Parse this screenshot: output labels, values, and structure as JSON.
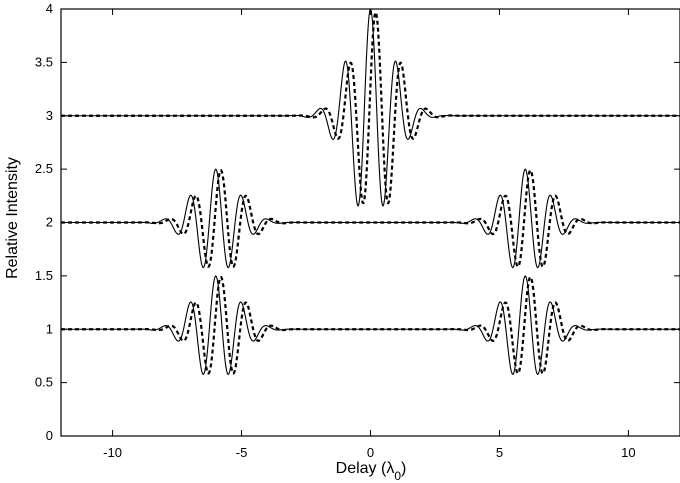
{
  "chart_data": {
    "type": "line",
    "title": "",
    "xlabel": "Delay (λ0)",
    "ylabel": "Relative Intensity",
    "xlim": [
      -12,
      12
    ],
    "ylim": [
      0,
      4
    ],
    "x_ticks": [
      -10,
      -5,
      0,
      5,
      10
    ],
    "x_tick_labels": [
      "-10",
      "-5",
      "0",
      "5",
      "10"
    ],
    "y_ticks": [
      0,
      0.5,
      1,
      1.5,
      2,
      2.5,
      3,
      3.5,
      4
    ],
    "y_tick_labels": [
      "0",
      "0.5",
      "1",
      "1.5",
      "2",
      "2.5",
      "3",
      "3.5",
      "4"
    ],
    "grid": false,
    "legend": "none",
    "series": [
      {
        "style": "solid",
        "traces": [
          {
            "baseline": 3,
            "packets": [
              {
                "center": 0,
                "amplitude": 1.0,
                "sigma": 0.85,
                "period": 1.0,
                "phase": 0
              }
            ],
            "x": [
              -3.0,
              -2.5,
              -2.0,
              -1.5,
              -1.0,
              -0.5,
              0.0,
              0.5,
              1.0,
              1.5,
              2.0,
              2.5,
              3.0
            ],
            "y": [
              3.06,
              2.93,
              3.08,
              2.72,
              3.61,
              2.08,
              3.96,
              2.03,
              3.63,
              2.69,
              3.12,
              2.92,
              3.03
            ]
          },
          {
            "baseline": 2,
            "packets": [
              {
                "center": -6,
                "amplitude": 0.5,
                "sigma": 0.85,
                "period": 1.0,
                "phase": 0
              },
              {
                "center": 6,
                "amplitude": 0.5,
                "sigma": 0.85,
                "period": 1.0,
                "phase": 0
              }
            ],
            "x": [
              -8.0,
              -7.5,
              -7.0,
              -6.5,
              -6.0,
              -5.5,
              -5.0,
              -4.5,
              -4.0
            ],
            "y": [
              2.05,
              1.88,
              2.28,
              1.56,
              2.48,
              1.54,
              2.35,
              1.86,
              2.06
            ]
          },
          {
            "baseline": 1,
            "packets": [
              {
                "center": -6,
                "amplitude": 0.5,
                "sigma": 0.85,
                "period": 1.0,
                "phase": 0
              },
              {
                "center": 6,
                "amplitude": 0.5,
                "sigma": 0.85,
                "period": 1.0,
                "phase": 0
              }
            ],
            "x": [
              -8.0,
              -7.5,
              -7.0,
              -6.5,
              -6.0,
              -5.5,
              -5.0,
              -4.5,
              -4.0
            ],
            "y": [
              1.05,
              0.88,
              1.28,
              0.56,
              1.48,
              0.54,
              1.35,
              0.86,
              1.06
            ]
          }
        ]
      },
      {
        "style": "dashed",
        "traces": [
          {
            "baseline": 3,
            "packets": [
              {
                "center": 0.2,
                "amplitude": 0.97,
                "sigma": 0.85,
                "period": 1.0,
                "phase": 0
              }
            ],
            "x": [
              -2.8,
              -2.3,
              -1.8,
              -1.3,
              -0.8,
              -0.3,
              0.2,
              0.7,
              1.2,
              1.7,
              2.2,
              2.7,
              3.2
            ],
            "y": [
              3.06,
              2.93,
              3.08,
              2.72,
              3.6,
              2.1,
              3.95,
              2.05,
              3.61,
              2.71,
              3.12,
              2.93,
              3.03
            ]
          },
          {
            "baseline": 2,
            "packets": [
              {
                "center": -5.8,
                "amplitude": 0.49,
                "sigma": 0.85,
                "period": 1.0,
                "phase": 0
              },
              {
                "center": 6.2,
                "amplitude": 0.49,
                "sigma": 0.85,
                "period": 1.0,
                "phase": 0
              }
            ],
            "x": [
              -7.8,
              -7.3,
              -6.8,
              -6.3,
              -5.8,
              -5.3,
              -4.8,
              -4.3,
              -3.8
            ],
            "y": [
              2.05,
              1.88,
              2.28,
              1.57,
              2.47,
              1.55,
              2.34,
              1.87,
              2.06
            ]
          },
          {
            "baseline": 1,
            "packets": [
              {
                "center": -5.8,
                "amplitude": 0.49,
                "sigma": 0.85,
                "period": 1.0,
                "phase": 0
              },
              {
                "center": 6.2,
                "amplitude": 0.49,
                "sigma": 0.85,
                "period": 1.0,
                "phase": 0
              }
            ],
            "x": [
              -7.8,
              -7.3,
              -6.8,
              -6.3,
              -5.8,
              -5.3,
              -4.8,
              -4.3,
              -3.8
            ],
            "y": [
              1.05,
              0.88,
              1.28,
              0.57,
              1.47,
              0.55,
              1.34,
              0.87,
              1.06
            ]
          }
        ]
      }
    ]
  }
}
